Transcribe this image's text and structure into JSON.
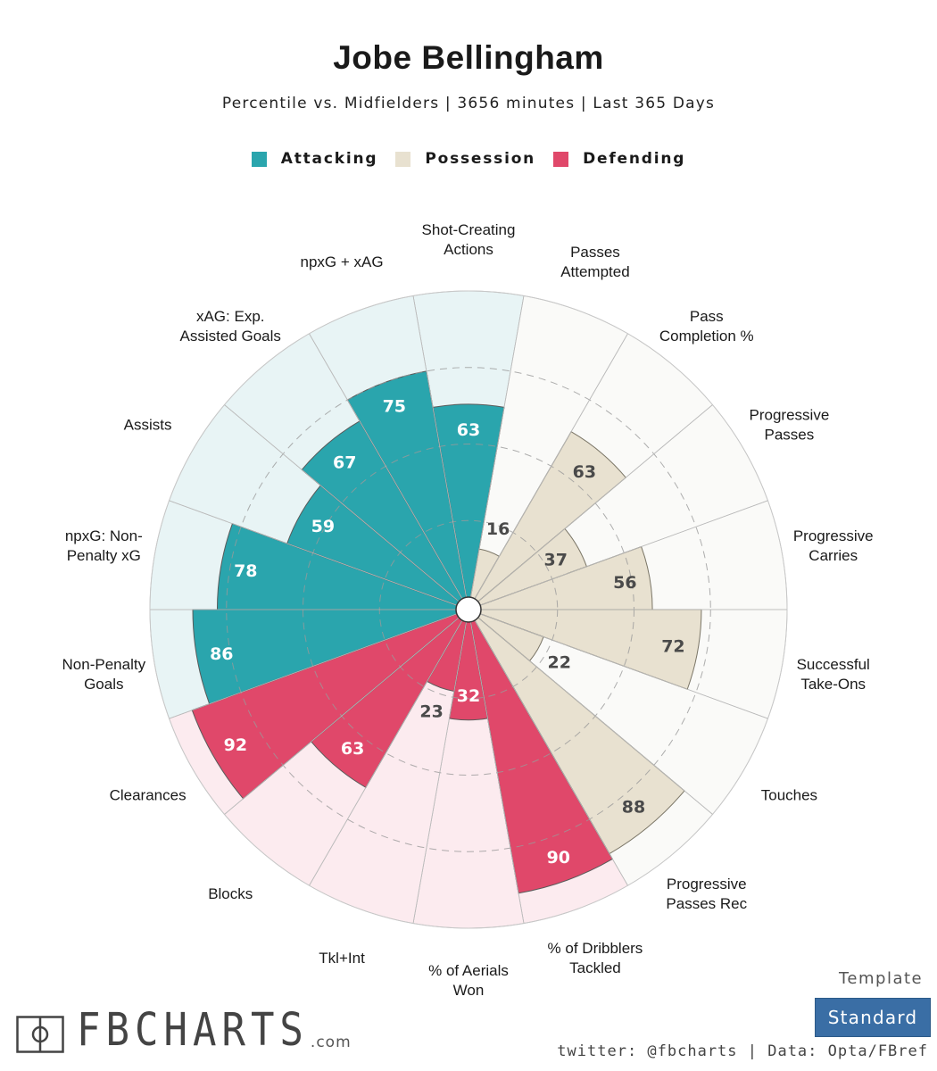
{
  "header": {
    "title": "Jobe Bellingham",
    "subtitle": "Percentile vs. Midfielders | 3656 minutes | Last 365 Days"
  },
  "legend": [
    {
      "label": "Attacking",
      "color": "#2aa5ad"
    },
    {
      "label": "Possession",
      "color": "#e8e1d0"
    },
    {
      "label": "Defending",
      "color": "#e0486a"
    }
  ],
  "footer": {
    "template_label": "Template",
    "template_value": "Standard",
    "logo_text": "FBCHARTS",
    "logo_suffix": ".com",
    "credits": "twitter: @fbcharts | Data: Opta/FBref"
  },
  "chart_data": {
    "type": "radar-bar",
    "title": "Jobe Bellingham",
    "subtitle": "Percentile vs. Midfielders | 3656 minutes | Last 365 Days",
    "rlim": [
      0,
      100
    ],
    "ring_ticks": [
      25,
      50,
      75
    ],
    "category_colors": {
      "Attacking": {
        "fill": "#2aa5ad",
        "bg": "#e8f4f5"
      },
      "Possession": {
        "fill": "#e8e1d0",
        "bg": "#fafaf8"
      },
      "Defending": {
        "fill": "#e0486a",
        "bg": "#fcebef"
      }
    },
    "metrics": [
      {
        "label": "Shot-Creating\nActions",
        "value": 63,
        "category": "Attacking"
      },
      {
        "label": "Passes\nAttempted",
        "value": 16,
        "category": "Possession"
      },
      {
        "label": "Pass\nCompletion %",
        "value": 63,
        "category": "Possession"
      },
      {
        "label": "Progressive\nPasses",
        "value": 37,
        "category": "Possession"
      },
      {
        "label": "Progressive\nCarries",
        "value": 56,
        "category": "Possession"
      },
      {
        "label": "Successful\nTake-Ons",
        "value": 72,
        "category": "Possession"
      },
      {
        "label": "Touches",
        "value": 22,
        "category": "Possession"
      },
      {
        "label": "Progressive\nPasses Rec",
        "value": 88,
        "category": "Possession"
      },
      {
        "label": "% of Dribblers\nTackled",
        "value": 90,
        "category": "Defending"
      },
      {
        "label": "% of Aerials\nWon",
        "value": 32,
        "category": "Defending"
      },
      {
        "label": "Tkl+Int",
        "value": 23,
        "category": "Defending"
      },
      {
        "label": "Blocks",
        "value": 63,
        "category": "Defending"
      },
      {
        "label": "Clearances",
        "value": 92,
        "category": "Defending"
      },
      {
        "label": "Non-Penalty\nGoals",
        "value": 86,
        "category": "Attacking"
      },
      {
        "label": "npxG: Non-\nPenalty xG",
        "value": 78,
        "category": "Attacking"
      },
      {
        "label": "Assists",
        "value": 59,
        "category": "Attacking"
      },
      {
        "label": "xAG: Exp.\nAssisted Goals",
        "value": 67,
        "category": "Attacking"
      },
      {
        "label": "npxG + xAG",
        "value": 75,
        "category": "Attacking"
      }
    ]
  }
}
